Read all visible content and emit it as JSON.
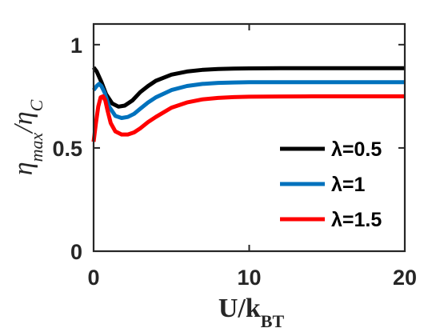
{
  "chart_data": {
    "type": "line",
    "xlabel": "U/k_BT",
    "ylabel": "η_max/η_C",
    "xlim": [
      0,
      20
    ],
    "ylim": [
      0,
      1.1
    ],
    "xticks": [
      "0",
      "10",
      "20"
    ],
    "yticks": [
      "0",
      "0.5",
      "1"
    ],
    "grid": false,
    "legend": {
      "placement": "bottom-right"
    },
    "series": [
      {
        "name": "λ=0.5",
        "color": "#000000",
        "x": [
          0,
          0.2,
          0.5,
          0.8,
          1.2,
          1.6,
          2.0,
          2.5,
          3,
          3.5,
          4,
          5,
          6,
          7,
          8,
          9,
          10,
          12,
          14,
          16,
          18,
          20
        ],
        "y": [
          0.89,
          0.87,
          0.82,
          0.76,
          0.715,
          0.7,
          0.705,
          0.73,
          0.77,
          0.8,
          0.825,
          0.855,
          0.87,
          0.878,
          0.882,
          0.884,
          0.885,
          0.886,
          0.886,
          0.886,
          0.886,
          0.886
        ]
      },
      {
        "name": "λ=1",
        "color": "#0072BD",
        "x": [
          0,
          0.2,
          0.35,
          0.5,
          0.7,
          1.0,
          1.4,
          1.8,
          2.2,
          2.6,
          3,
          3.5,
          4,
          5,
          6,
          7,
          8,
          9,
          10,
          12,
          14,
          16,
          18,
          20
        ],
        "y": [
          0.78,
          0.8,
          0.81,
          0.8,
          0.77,
          0.7,
          0.655,
          0.645,
          0.65,
          0.665,
          0.69,
          0.72,
          0.745,
          0.78,
          0.8,
          0.81,
          0.815,
          0.817,
          0.818,
          0.818,
          0.818,
          0.818,
          0.818,
          0.818
        ]
      },
      {
        "name": "λ=1.5",
        "color": "#FF0000",
        "x": [
          0,
          0.15,
          0.3,
          0.45,
          0.6,
          0.75,
          0.9,
          1.1,
          1.4,
          1.8,
          2.2,
          2.6,
          3,
          3.5,
          4,
          5,
          6,
          7,
          8,
          9,
          10,
          12,
          14,
          16,
          18,
          20
        ],
        "y": [
          0.53,
          0.62,
          0.7,
          0.745,
          0.75,
          0.73,
          0.68,
          0.62,
          0.58,
          0.565,
          0.565,
          0.575,
          0.595,
          0.625,
          0.65,
          0.695,
          0.72,
          0.735,
          0.742,
          0.746,
          0.748,
          0.749,
          0.75,
          0.75,
          0.75,
          0.75
        ]
      }
    ]
  }
}
